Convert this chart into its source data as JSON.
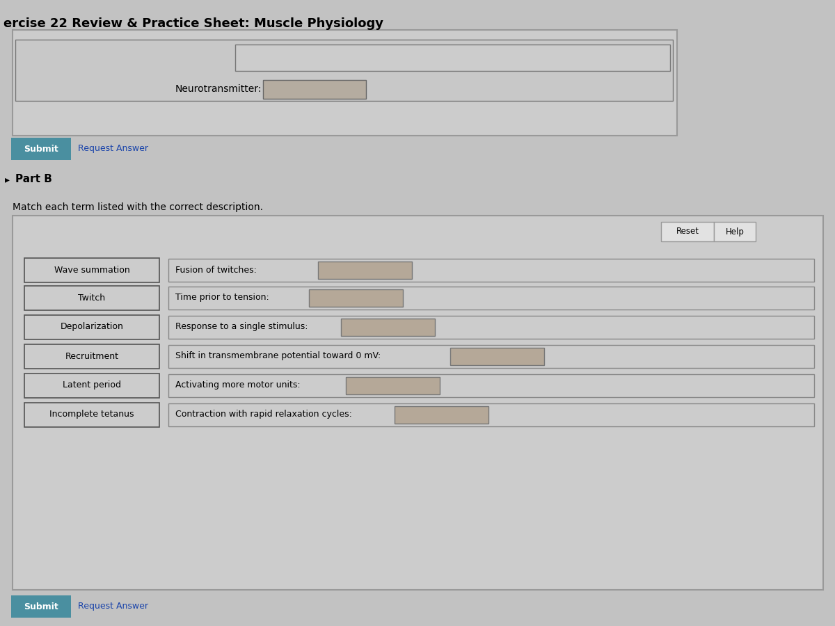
{
  "title": "ercise 22 Review & Practice Sheet: Muscle Physiology",
  "bg_color": "#c2c2c2",
  "submit_btn_color": "#4a8fa0",
  "submit_btn_text": "#ffffff",
  "part_b_label": "Part B",
  "match_instruction": "Match each term listed with the correct description.",
  "neurotransmitter_label": "Neurotransmitter:",
  "terms": [
    "Wave summation",
    "Twitch",
    "Depolarization",
    "Recruitment",
    "Latent period",
    "Incomplete tetanus"
  ],
  "descriptions": [
    "Fusion of twitches:",
    "Time prior to tension:",
    "Response to a single stimulus:",
    "Shift in transmembrane potential toward 0 mV:",
    "Activating more motor units:",
    "Contraction with rapid relaxation cycles:"
  ],
  "desc_text_offsets": [
    2.15,
    2.02,
    2.48,
    4.05,
    2.55,
    3.25
  ],
  "term_y": [
    5.12,
    4.72,
    4.3,
    3.88,
    3.46,
    3.04
  ],
  "desc_y": [
    5.12,
    4.72,
    4.3,
    3.88,
    3.46,
    3.04
  ]
}
